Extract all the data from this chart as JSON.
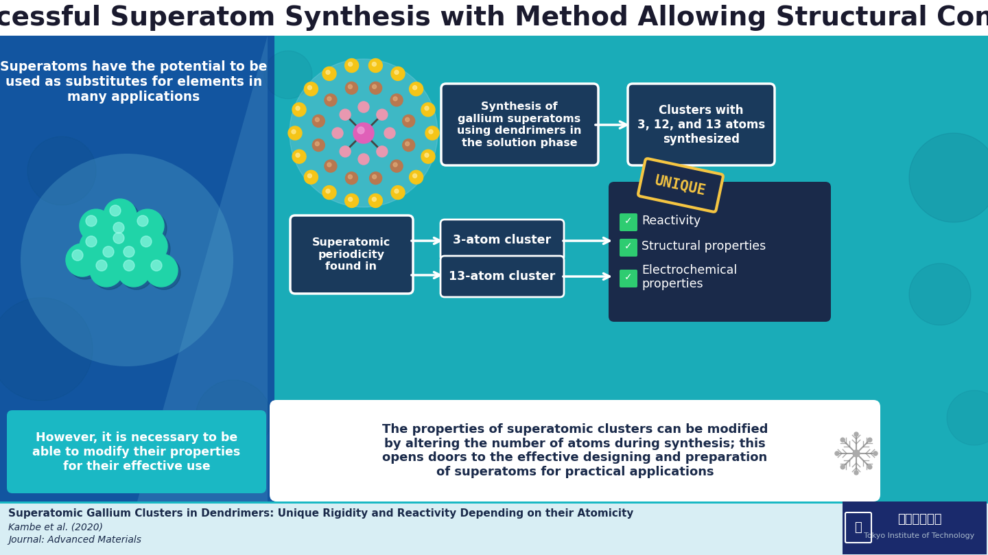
{
  "title": "Successful Superatom Synthesis with Method Allowing Structural Control",
  "title_fontsize": 28,
  "title_color": "#1a1a2e",
  "bg_color": "#1aacb8",
  "left_panel_color": "#1565a0",
  "footer_bg": "#d8eef4",
  "dark_navy": "#1a2a4a",
  "teal_light": "#1ab8c4",
  "white": "#ffffff",
  "green_check": "#2ecc71",
  "top_left_text": "Superatoms have the potential to be\nused as substitutes for elements in\nmany applications",
  "bottom_left_text": "However, it is necessary to be\nable to modify their properties\nfor their effective use",
  "synthesis_box_text": "Synthesis of\ngallium superatoms\nusing dendrimers in\nthe solution phase",
  "clusters_box_text": "Clusters with\n3, 12, and 13 atoms\nsynthesized",
  "periodicity_text": "Superatomic\nperiodicity\nfound in",
  "cluster3_text": "3-atom cluster",
  "cluster13_text": "13-atom cluster",
  "properties": [
    "Reactivity",
    "Structural properties",
    "Electrochemical\nproperties"
  ],
  "bottom_box_text": "The properties of superatomic clusters can be modified\nby altering the number of atoms during synthesis; this\nopens doors to the effective designing and preparation\nof superatoms for practical applications",
  "footer_title": "Superatomic Gallium Clusters in Dendrimers: Unique Rigidity and Reactivity Depending on their Atomicity",
  "footer_author": "Kambe et al. (2020)",
  "footer_journal": "Journal: Advanced Materials",
  "unique_label": "UNIQUE"
}
